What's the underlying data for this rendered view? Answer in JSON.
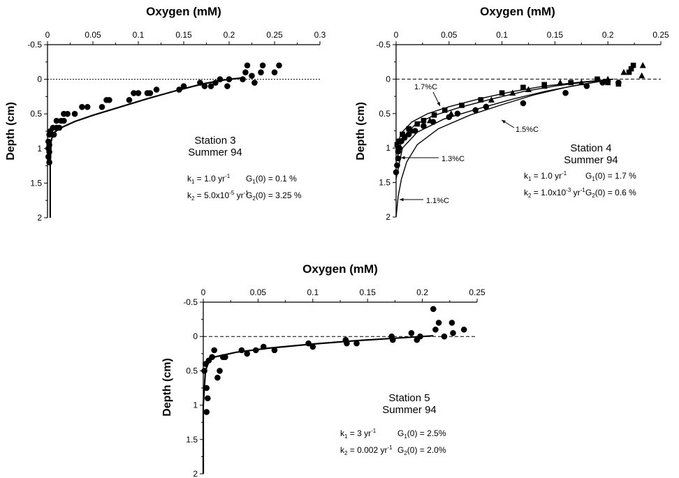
{
  "chart_data": [
    {
      "type": "scatter",
      "xlabel": "Oxygen  (mM)",
      "ylabel": "Depth  (cm)",
      "xlim": [
        0,
        0.3
      ],
      "ylim": [
        -0.5,
        2
      ],
      "x_ticks": [
        "0",
        "0.05",
        "0.1",
        "0.15",
        "0.2",
        "0.25",
        "0.3"
      ],
      "y_ticks": [
        "-0.5",
        "0",
        "0.5",
        "1",
        "1.5",
        "2"
      ],
      "annotation": [
        "Station 3",
        "Summer 94"
      ],
      "params": [
        {
          "k_sym": "k",
          "k_sub": "1",
          "k_val": "= 1.0 yr",
          "k_sup": "-1",
          "g_sym": "G",
          "g_sub": "1",
          "g_val": "(0) = 0.1 %"
        },
        {
          "k_sym": "k",
          "k_sub": "2",
          "k_val": "= 5.0x10",
          "k_sup": "-5",
          "k_tail": " yr",
          "k_sup2": "-1",
          "g_sym": "G",
          "g_sub": "2",
          "g_val": "(0) = 3.25 %"
        }
      ],
      "series": [
        {
          "marker": "circle",
          "points": [
            [
              0.002,
              0.8
            ],
            [
              0.001,
              0.9
            ],
            [
              0.002,
              0.95
            ],
            [
              0.001,
              1.0
            ],
            [
              0.002,
              1.05
            ],
            [
              0.001,
              1.12
            ],
            [
              0.002,
              1.2
            ],
            [
              0.003,
              0.75
            ],
            [
              0.006,
              0.7
            ],
            [
              0.01,
              0.7
            ],
            [
              0.007,
              0.8
            ],
            [
              0.013,
              0.7
            ],
            [
              0.01,
              0.6
            ],
            [
              0.015,
              0.6
            ],
            [
              0.018,
              0.5
            ],
            [
              0.022,
              0.5
            ],
            [
              0.018,
              0.6
            ],
            [
              0.03,
              0.5
            ],
            [
              0.038,
              0.4
            ],
            [
              0.044,
              0.4
            ],
            [
              0.06,
              0.4
            ],
            [
              0.065,
              0.3
            ],
            [
              0.068,
              0.3
            ],
            [
              0.09,
              0.3
            ],
            [
              0.095,
              0.2
            ],
            [
              0.1,
              0.2
            ],
            [
              0.11,
              0.2
            ],
            [
              0.113,
              0.2
            ],
            [
              0.12,
              0.15
            ],
            [
              0.145,
              0.15
            ],
            [
              0.15,
              0.1
            ],
            [
              0.168,
              0.05
            ],
            [
              0.173,
              0.1
            ],
            [
              0.18,
              0.1
            ],
            [
              0.185,
              0.05
            ],
            [
              0.19,
              0.0
            ],
            [
              0.198,
              0.1
            ],
            [
              0.2,
              0.0
            ],
            [
              0.215,
              0.0
            ],
            [
              0.218,
              -0.1
            ],
            [
              0.22,
              -0.2
            ],
            [
              0.225,
              -0.05
            ],
            [
              0.228,
              0.05
            ],
            [
              0.235,
              -0.1
            ],
            [
              0.237,
              -0.2
            ],
            [
              0.25,
              -0.1
            ],
            [
              0.255,
              -0.2
            ]
          ]
        }
      ],
      "curves": [
        {
          "points": [
            [
              0.003,
              2.0
            ],
            [
              0.003,
              1.6
            ],
            [
              0.003,
              1.2
            ],
            [
              0.004,
              0.9
            ],
            [
              0.006,
              0.78
            ],
            [
              0.015,
              0.7
            ],
            [
              0.03,
              0.61
            ],
            [
              0.05,
              0.52
            ],
            [
              0.08,
              0.4
            ],
            [
              0.11,
              0.28
            ],
            [
              0.14,
              0.17
            ],
            [
              0.17,
              0.07
            ],
            [
              0.19,
              0.02
            ],
            [
              0.2,
              0.0
            ],
            [
              0.215,
              -0.02
            ]
          ]
        }
      ]
    },
    {
      "type": "scatter",
      "xlabel": "Oxygen  (mM)",
      "ylabel": "Depth  (cm)",
      "xlim": [
        0,
        0.25
      ],
      "ylim": [
        -0.5,
        2
      ],
      "x_ticks": [
        "0",
        "0.05",
        "0.1",
        "0.15",
        "0.2",
        "0.25"
      ],
      "y_ticks": [
        "-0.5",
        "0",
        "0.5",
        "1",
        "1.5",
        "2"
      ],
      "annotation": [
        "Station 4",
        "Summer 94"
      ],
      "params": [
        {
          "k_sym": "k",
          "k_sub": "1",
          "k_val": "= 1.0 yr",
          "k_sup": "-1",
          "g_sym": "G",
          "g_sub": "1",
          "g_val": "(0) = 1.7 %"
        },
        {
          "k_sym": "k",
          "k_sub": "2",
          "k_val": "= 1.0x10",
          "k_sup": "-3",
          "k_tail": " yr",
          "k_sup2": "-1",
          "g_sym": "G",
          "g_sub": "2",
          "g_val": "(0) = 0.6 %"
        }
      ],
      "curve_labels": [
        "1.7%C",
        "1.5%C",
        "1.3%C",
        "1.1%C"
      ],
      "series": [
        {
          "marker": "circle",
          "points": [
            [
              0.0,
              1.35
            ],
            [
              0.001,
              1.25
            ],
            [
              0.002,
              1.15
            ],
            [
              0.002,
              1.05
            ],
            [
              0.003,
              1.0
            ],
            [
              0.005,
              0.9
            ],
            [
              0.008,
              0.85
            ],
            [
              0.012,
              0.8
            ],
            [
              0.018,
              0.75
            ],
            [
              0.026,
              0.68
            ],
            [
              0.035,
              0.62
            ],
            [
              0.05,
              0.55
            ],
            [
              0.058,
              0.5
            ],
            [
              0.075,
              0.45
            ],
            [
              0.085,
              0.4
            ],
            [
              0.12,
              0.35
            ],
            [
              0.16,
              0.2
            ],
            [
              0.18,
              0.1
            ],
            [
              0.195,
              0.05
            ],
            [
              0.21,
              0.05
            ]
          ]
        },
        {
          "marker": "square",
          "points": [
            [
              0.001,
              0.95
            ],
            [
              0.003,
              0.9
            ],
            [
              0.006,
              0.8
            ],
            [
              0.012,
              0.72
            ],
            [
              0.02,
              0.65
            ],
            [
              0.026,
              0.6
            ],
            [
              0.036,
              0.52
            ],
            [
              0.046,
              0.45
            ],
            [
              0.062,
              0.38
            ],
            [
              0.08,
              0.3
            ],
            [
              0.1,
              0.2
            ],
            [
              0.12,
              0.12
            ],
            [
              0.14,
              0.08
            ],
            [
              0.165,
              0.05
            ],
            [
              0.19,
              0.0
            ],
            [
              0.2,
              0.05
            ],
            [
              0.21,
              0.07
            ],
            [
              0.22,
              -0.1
            ],
            [
              0.222,
              -0.15
            ],
            [
              0.224,
              -0.2
            ]
          ]
        },
        {
          "marker": "triangle",
          "points": [
            [
              0.015,
              0.75
            ],
            [
              0.032,
              0.6
            ],
            [
              0.052,
              0.5
            ],
            [
              0.09,
              0.3
            ],
            [
              0.11,
              0.2
            ],
            [
              0.125,
              0.15
            ],
            [
              0.14,
              0.1
            ],
            [
              0.155,
              0.05
            ],
            [
              0.175,
              0.05
            ],
            [
              0.2,
              0.0
            ],
            [
              0.215,
              -0.1
            ],
            [
              0.232,
              -0.05
            ],
            [
              0.233,
              -0.2
            ]
          ]
        }
      ],
      "curves": [
        {
          "points": [
            [
              0.0,
              1.0
            ],
            [
              0.005,
              0.78
            ],
            [
              0.015,
              0.62
            ],
            [
              0.03,
              0.5
            ],
            [
              0.05,
              0.4
            ],
            [
              0.08,
              0.28
            ],
            [
              0.11,
              0.18
            ],
            [
              0.14,
              0.1
            ],
            [
              0.17,
              0.05
            ],
            [
              0.19,
              0.02
            ],
            [
              0.205,
              0.0
            ]
          ]
        },
        {
          "points": [
            [
              0.0,
              1.2
            ],
            [
              0.006,
              0.85
            ],
            [
              0.018,
              0.66
            ],
            [
              0.035,
              0.53
            ],
            [
              0.06,
              0.41
            ],
            [
              0.09,
              0.29
            ],
            [
              0.12,
              0.18
            ],
            [
              0.15,
              0.1
            ],
            [
              0.18,
              0.04
            ],
            [
              0.2,
              0.01
            ],
            [
              0.205,
              0.0
            ]
          ]
        },
        {
          "points": [
            [
              0.0,
              1.45
            ],
            [
              0.006,
              1.0
            ],
            [
              0.02,
              0.77
            ],
            [
              0.045,
              0.58
            ],
            [
              0.075,
              0.44
            ],
            [
              0.11,
              0.29
            ],
            [
              0.14,
              0.18
            ],
            [
              0.17,
              0.09
            ],
            [
              0.19,
              0.04
            ],
            [
              0.205,
              0.0
            ]
          ]
        },
        {
          "points": [
            [
              0.0,
              2.0
            ],
            [
              0.002,
              1.7
            ],
            [
              0.005,
              1.45
            ],
            [
              0.01,
              1.2
            ],
            [
              0.02,
              0.95
            ],
            [
              0.04,
              0.72
            ],
            [
              0.07,
              0.52
            ],
            [
              0.1,
              0.37
            ],
            [
              0.13,
              0.23
            ],
            [
              0.16,
              0.12
            ],
            [
              0.185,
              0.05
            ],
            [
              0.205,
              0.0
            ]
          ]
        }
      ]
    },
    {
      "type": "scatter",
      "xlabel": "Oxygen  (mM)",
      "ylabel": "Depth  (cm)",
      "xlim": [
        0,
        0.25
      ],
      "ylim": [
        -0.5,
        2
      ],
      "x_ticks": [
        "0",
        "0.05",
        "0.1",
        "0.15",
        "0.2",
        "0.25"
      ],
      "y_ticks": [
        "-0.5",
        "0",
        "0.5",
        "1",
        "1.5",
        "2"
      ],
      "annotation": [
        "Station 5",
        "Summer 94"
      ],
      "params": [
        {
          "k_sym": "k",
          "k_sub": "1",
          "k_val": "= 3 yr",
          "k_sup": "-1",
          "g_sym": "G",
          "g_sub": "1",
          "g_val": "(0) = 2.5%"
        },
        {
          "k_sym": "k",
          "k_sub": "2",
          "k_val": "= 0.002 yr",
          "k_sup": "-1",
          "g_sym": "G",
          "g_sub": "2",
          "g_val": "(0) = 2.0%"
        }
      ],
      "series": [
        {
          "marker": "circle",
          "points": [
            [
              0.001,
              0.5
            ],
            [
              0.002,
              0.4
            ],
            [
              0.003,
              0.75
            ],
            [
              0.003,
              1.1
            ],
            [
              0.004,
              0.9
            ],
            [
              0.005,
              0.35
            ],
            [
              0.008,
              0.3
            ],
            [
              0.01,
              0.2
            ],
            [
              0.013,
              0.6
            ],
            [
              0.015,
              0.5
            ],
            [
              0.018,
              0.3
            ],
            [
              0.02,
              0.3
            ],
            [
              0.035,
              0.2
            ],
            [
              0.04,
              0.25
            ],
            [
              0.048,
              0.2
            ],
            [
              0.055,
              0.15
            ],
            [
              0.065,
              0.2
            ],
            [
              0.096,
              0.1
            ],
            [
              0.1,
              0.15
            ],
            [
              0.13,
              0.05
            ],
            [
              0.131,
              0.1
            ],
            [
              0.14,
              0.1
            ],
            [
              0.172,
              0.0
            ],
            [
              0.173,
              0.05
            ],
            [
              0.19,
              -0.05
            ],
            [
              0.195,
              0.05
            ],
            [
              0.198,
              0.0
            ],
            [
              0.21,
              -0.4
            ],
            [
              0.212,
              -0.1
            ],
            [
              0.215,
              -0.2
            ],
            [
              0.22,
              0.0
            ],
            [
              0.227,
              -0.2
            ],
            [
              0.228,
              -0.05
            ],
            [
              0.238,
              -0.1
            ]
          ]
        }
      ],
      "curves": [
        {
          "points": [
            [
              0.0,
              2.0
            ],
            [
              0.0,
              1.0
            ],
            [
              0.002,
              0.5
            ],
            [
              0.005,
              0.37
            ],
            [
              0.01,
              0.3
            ],
            [
              0.03,
              0.23
            ],
            [
              0.06,
              0.17
            ],
            [
              0.1,
              0.11
            ],
            [
              0.14,
              0.06
            ],
            [
              0.17,
              0.03
            ],
            [
              0.2,
              0.0
            ],
            [
              0.21,
              -0.01
            ]
          ]
        }
      ]
    }
  ]
}
